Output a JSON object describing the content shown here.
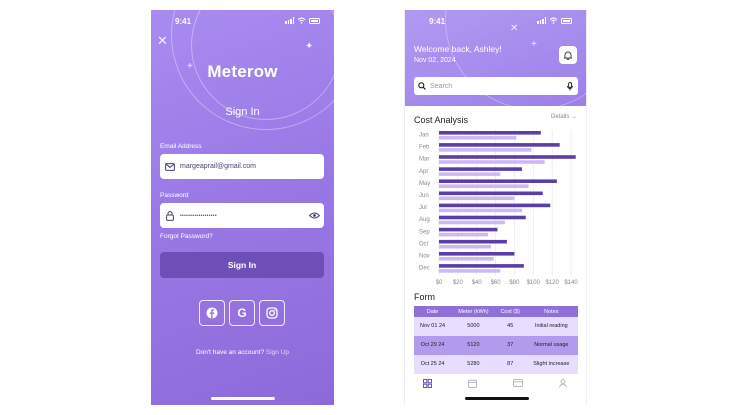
{
  "signin": {
    "status_time": "9:41",
    "app_name": "Meterow",
    "title": "Sign In",
    "email_label": "Email Address",
    "email_value": "margeaprail@gmail.com",
    "password_label": "Password",
    "password_value": "••••••••••••••••••",
    "forgot_label": "Forgot Password?",
    "signin_button": "Sign In",
    "social": [
      "facebook-icon",
      "google-icon",
      "instagram-icon"
    ],
    "no_account_text": "Don't have an account?",
    "signup_link": "Sign Up"
  },
  "dashboard": {
    "status_time": "9:41",
    "welcome": "Welcome back, Ashley!",
    "date": "Nov 02, 2024",
    "search_placeholder": "Search",
    "cost_title": "Cost Analysis",
    "details_link": "Details →",
    "form_title": "Form",
    "table": {
      "headers": [
        "Date",
        "Meter (kWh)",
        "Cost ($)",
        "Notes"
      ],
      "rows": [
        [
          "Nov 01 24",
          "5000",
          "45",
          "Initial reading"
        ],
        [
          "Oct 29 24",
          "5120",
          "37",
          "Normal usage"
        ],
        [
          "Oct 25 24",
          "5280",
          "87",
          "Slight increase"
        ]
      ]
    },
    "tabs": [
      "grid-icon",
      "calendar-icon",
      "card-icon",
      "user-icon"
    ]
  },
  "colors": {
    "accent": "#6e4fb8",
    "bar_dark": "#5c3ea8",
    "bar_light": "#cdb8f5"
  },
  "chart_data": {
    "type": "bar",
    "orientation": "horizontal",
    "categories": [
      "Jan",
      "Feb",
      "Mar",
      "Apr",
      "May",
      "Jun",
      "Jul",
      "Aug",
      "Sep",
      "Oct",
      "Nov",
      "Dec"
    ],
    "series": [
      {
        "values": [
          108,
          128,
          145,
          88,
          125,
          110,
          118,
          92,
          62,
          72,
          80,
          90
        ]
      },
      {
        "values": [
          82,
          98,
          112,
          65,
          95,
          80,
          88,
          70,
          52,
          55,
          58,
          65
        ]
      }
    ],
    "xlim": [
      0,
      140
    ],
    "x_ticks": [
      "$0",
      "$20",
      "$40",
      "$60",
      "$80",
      "$100",
      "$120",
      "$140"
    ],
    "grid": "vertical"
  }
}
